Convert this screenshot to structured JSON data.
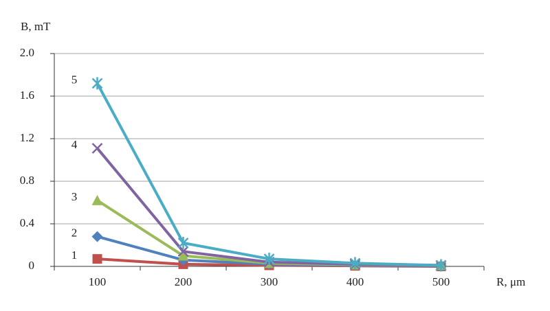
{
  "chart_data": {
    "type": "line",
    "y_label": "B, mT",
    "x_label": "R, μm",
    "categories": [
      "100",
      "200",
      "300",
      "400",
      "500"
    ],
    "series": [
      {
        "name": "1",
        "color": "#c0504d",
        "marker": "square",
        "values": [
          0.07,
          0.02,
          0.01,
          0.005,
          0
        ]
      },
      {
        "name": "2",
        "color": "#4f81bd",
        "marker": "diamond",
        "values": [
          0.28,
          0.06,
          0.02,
          0.01,
          0.005
        ]
      },
      {
        "name": "3",
        "color": "#9bbb59",
        "marker": "triangle",
        "values": [
          0.62,
          0.1,
          0.03,
          0.015,
          0.01
        ]
      },
      {
        "name": "4",
        "color": "#8064a2",
        "marker": "x",
        "values": [
          1.11,
          0.14,
          0.04,
          0.02,
          0.01
        ]
      },
      {
        "name": "5",
        "color": "#4bacc6",
        "marker": "star",
        "values": [
          1.72,
          0.22,
          0.07,
          0.03,
          0.01
        ]
      }
    ],
    "ylim": [
      0,
      2
    ],
    "yticks": [
      0,
      {
        "value": 0.4,
        "label": "0.4"
      },
      {
        "value": 0.8,
        "label": "0.8"
      },
      {
        "value": 1.2,
        "label": "1.2"
      },
      {
        "value": 1.6,
        "label": "1.6"
      },
      {
        "value": 2,
        "label": "2.0"
      }
    ],
    "grid": true
  }
}
